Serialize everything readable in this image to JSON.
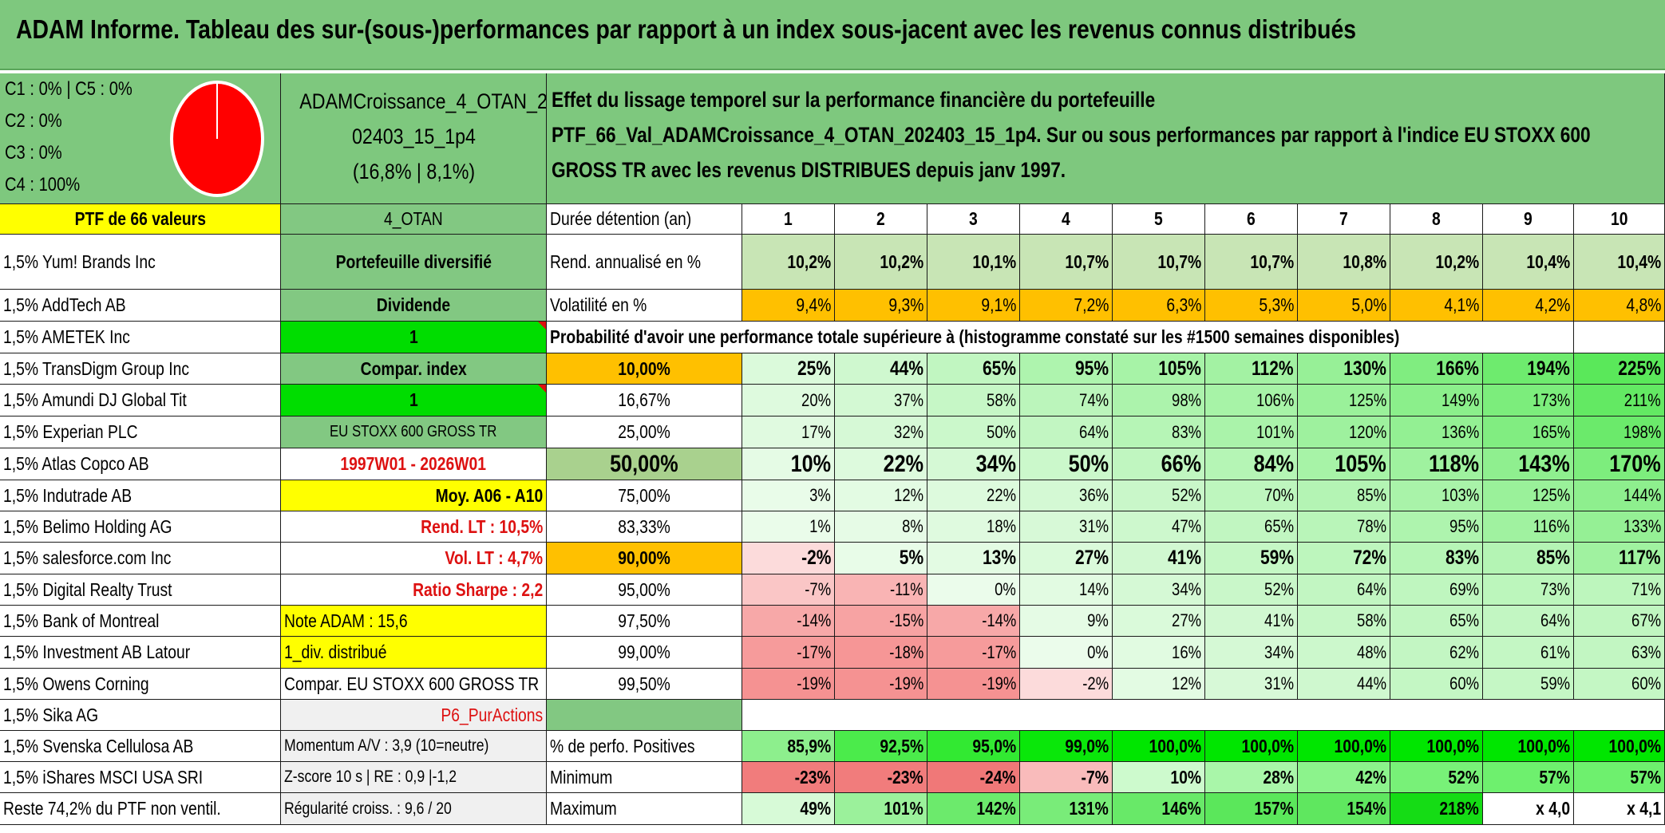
{
  "title": "ADAM Informe. Tableau des sur-(sous-)performances par rapport à un index sous-jacent avec les revenus connus distribués",
  "legend": [
    "C1 : 0% | C5 : 0%",
    "C2 : 0%",
    "C3 : 0%",
    "C4 : 100%"
  ],
  "pie": {
    "color": "#ff0000",
    "share_C4_percent": 100
  },
  "portfolio_name": [
    "ADAMCroissance_4_OTAN_2",
    "02403_15_1p4",
    "(16,8% | 8,1%)"
  ],
  "description": [
    "Effet du lissage temporel sur la performance financière du portefeuille",
    "PTF_66_Val_ADAMCroissance_4_OTAN_202403_15_1p4. Sur ou sous performances par rapport à l'indice EU STOXX 600",
    "GROSS TR avec les revenus DISTRIBUES depuis janv 1997."
  ],
  "ptf_label": "PTF de 66 valeurs",
  "holdings": [
    "1,5% Yum! Brands Inc",
    "1,5% AddTech AB",
    "1,5% AMETEK Inc",
    "1,5% TransDigm Group Inc",
    "1,5% Amundi DJ Global Tit",
    "1,5% Experian PLC",
    "1,5% Atlas Copco AB",
    "1,5% Indutrade AB",
    "1,5% Belimo Holding AG",
    "1,5% salesforce.com Inc",
    "1,5% Digital Realty Trust",
    "1,5% Bank of Montreal",
    "1,5% Investment AB Latour",
    "1,5% Owens Corning",
    "1,5% Sika AG",
    "1,5% Svenska Cellulosa AB",
    "1,5% iShares MSCI USA SRI",
    "Reste 74,2% du PTF non ventil."
  ],
  "info_col": [
    "4_OTAN",
    "Portefeuille diversifié",
    "Dividende",
    "1",
    "Compar. index",
    "1",
    "EU STOXX 600 GROSS TR",
    "1997W01 - 2026W01",
    "Moy. A06 - A10",
    "Rend. LT : 10,5%",
    "Vol. LT : 4,7%",
    "Ratio Sharpe : 2,2",
    "Note ADAM : 15,6",
    "1_div. distribué",
    "Compar. EU STOXX 600 GROSS TR",
    "P6_PurActions",
    "Momentum A/V : 3,9 (10=neutre)",
    "Z-score 10 s | RE : 0,9 |-1,2",
    "Régularité croiss. : 9,6 / 20"
  ],
  "row_labels": {
    "duree": "Durée détention (an)",
    "rend": "Rend. annualisé en %",
    "vol": "Volatilité en %",
    "pos": "% de perfo. Positives",
    "min": "Minimum",
    "max": "Maximum"
  },
  "years": [
    "1",
    "2",
    "3",
    "4",
    "5",
    "6",
    "7",
    "8",
    "9",
    "10"
  ],
  "rend": [
    "10,2%",
    "10,2%",
    "10,1%",
    "10,7%",
    "10,7%",
    "10,7%",
    "10,8%",
    "10,2%",
    "10,4%",
    "10,4%"
  ],
  "vol": [
    "9,4%",
    "9,3%",
    "9,1%",
    "7,2%",
    "6,3%",
    "5,3%",
    "5,0%",
    "4,1%",
    "4,2%",
    "4,8%"
  ],
  "prob_header": "Probabilité d'avoir une performance totale supérieure à (histogramme constaté sur les #1500 semaines disponibles)",
  "probs": [
    {
      "p": "10,00%",
      "v": [
        "25%",
        "44%",
        "65%",
        "95%",
        "105%",
        "112%",
        "130%",
        "166%",
        "194%",
        "225%"
      ]
    },
    {
      "p": "16,67%",
      "v": [
        "20%",
        "37%",
        "58%",
        "74%",
        "98%",
        "106%",
        "125%",
        "149%",
        "173%",
        "211%"
      ]
    },
    {
      "p": "25,00%",
      "v": [
        "17%",
        "32%",
        "50%",
        "64%",
        "83%",
        "101%",
        "120%",
        "136%",
        "165%",
        "198%"
      ]
    },
    {
      "p": "50,00%",
      "v": [
        "10%",
        "22%",
        "34%",
        "50%",
        "66%",
        "84%",
        "105%",
        "118%",
        "143%",
        "170%"
      ]
    },
    {
      "p": "75,00%",
      "v": [
        "3%",
        "12%",
        "22%",
        "36%",
        "52%",
        "70%",
        "85%",
        "103%",
        "125%",
        "144%"
      ]
    },
    {
      "p": "83,33%",
      "v": [
        "1%",
        "8%",
        "18%",
        "31%",
        "47%",
        "65%",
        "78%",
        "95%",
        "116%",
        "133%"
      ]
    },
    {
      "p": "90,00%",
      "v": [
        "-2%",
        "5%",
        "13%",
        "27%",
        "41%",
        "59%",
        "72%",
        "83%",
        "85%",
        "117%"
      ]
    },
    {
      "p": "95,00%",
      "v": [
        "-7%",
        "-11%",
        "0%",
        "14%",
        "34%",
        "52%",
        "64%",
        "69%",
        "73%",
        "71%"
      ]
    },
    {
      "p": "97,50%",
      "v": [
        "-14%",
        "-15%",
        "-14%",
        "9%",
        "27%",
        "41%",
        "58%",
        "65%",
        "64%",
        "67%"
      ]
    },
    {
      "p": "99,00%",
      "v": [
        "-17%",
        "-18%",
        "-17%",
        "0%",
        "16%",
        "34%",
        "48%",
        "62%",
        "61%",
        "63%"
      ]
    },
    {
      "p": "99,50%",
      "v": [
        "-19%",
        "-19%",
        "-19%",
        "-2%",
        "12%",
        "31%",
        "44%",
        "60%",
        "59%",
        "60%"
      ]
    }
  ],
  "pos": [
    "85,9%",
    "92,5%",
    "95,0%",
    "99,0%",
    "100,0%",
    "100,0%",
    "100,0%",
    "100,0%",
    "100,0%",
    "100,0%"
  ],
  "min": [
    "-23%",
    "-23%",
    "-24%",
    "-7%",
    "10%",
    "28%",
    "42%",
    "52%",
    "57%",
    "57%"
  ],
  "max": [
    "49%",
    "101%",
    "142%",
    "131%",
    "146%",
    "157%",
    "154%",
    "218%",
    "x 4,0",
    "x 4,1"
  ],
  "colors": {
    "banner": "#7ec87e",
    "yellow": "#ffff00",
    "orange": "#ffc000",
    "bright_green": "#00dd00",
    "red_text": "#dd1111"
  }
}
